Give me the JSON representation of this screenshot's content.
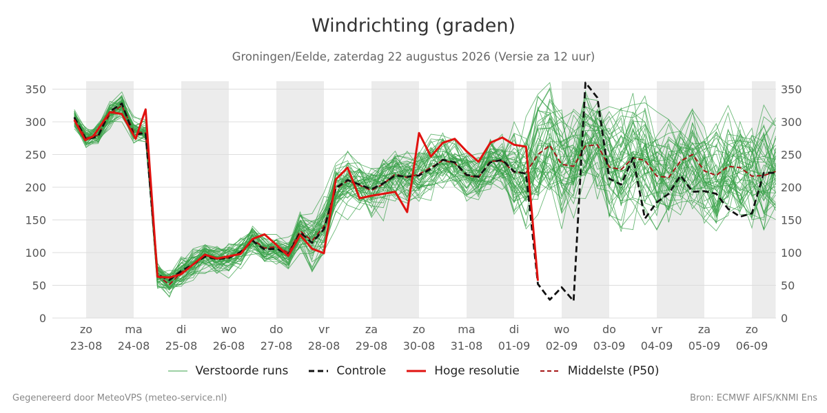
{
  "header": {
    "title": "Windrichting (graden)",
    "subtitle": "Groningen/Eelde, zaterdag 22 augustus 2026 (Versie za 12 uur)"
  },
  "footer": {
    "left": "Gegenereerd door MeteoVPS (meteo-service.nl)",
    "right": "Bron: ECMWF AIFS/KNMI Ens"
  },
  "colors": {
    "members": "#3aa14a",
    "control": "#111111",
    "hires": "#e0120f",
    "median": "#a51515",
    "night_band": "#ececec",
    "grid": "#dddddd"
  },
  "chart_data": {
    "type": "line",
    "title": "Windrichting (graden)",
    "ylim": [
      0,
      370
    ],
    "yticks": [
      0,
      50,
      100,
      150,
      200,
      250,
      300,
      350
    ],
    "xlim": [
      0,
      14.5
    ],
    "x_ticks": [
      {
        "x": 0,
        "day": "zo",
        "date": "23-08"
      },
      {
        "x": 1,
        "day": "ma",
        "date": "24-08"
      },
      {
        "x": 2,
        "day": "di",
        "date": "25-08"
      },
      {
        "x": 3,
        "day": "wo",
        "date": "26-08"
      },
      {
        "x": 4,
        "day": "do",
        "date": "27-08"
      },
      {
        "x": 5,
        "day": "vr",
        "date": "28-08"
      },
      {
        "x": 6,
        "day": "za",
        "date": "29-08"
      },
      {
        "x": 7,
        "day": "zo",
        "date": "30-08"
      },
      {
        "x": 8,
        "day": "ma",
        "date": "31-08"
      },
      {
        "x": 9,
        "day": "di",
        "date": "01-09"
      },
      {
        "x": 10,
        "day": "wo",
        "date": "02-09"
      },
      {
        "x": 11,
        "day": "do",
        "date": "03-09"
      },
      {
        "x": 12,
        "day": "vr",
        "date": "04-09"
      },
      {
        "x": 13,
        "day": "za",
        "date": "05-09"
      },
      {
        "x": 14,
        "day": "zo",
        "date": "06-09"
      }
    ],
    "night_bands": [
      [
        0,
        1
      ],
      [
        2,
        3
      ],
      [
        4,
        5
      ],
      [
        6,
        7
      ],
      [
        8,
        9
      ],
      [
        10,
        11
      ],
      [
        12,
        13
      ],
      [
        14,
        14.5
      ]
    ],
    "grid": true,
    "legend_position": "bottom",
    "legend": {
      "members": "Verstoorde runs",
      "control": "Controle",
      "hires": "Hoge resolutie",
      "median": "Middelste (P50)"
    },
    "series": [
      {
        "name": "Hoge resolutie",
        "role": "hires",
        "points": [
          [
            -0.25,
            303
          ],
          [
            -0.02,
            272
          ],
          [
            0.15,
            278
          ],
          [
            0.5,
            315
          ],
          [
            0.75,
            312
          ],
          [
            1.04,
            274
          ],
          [
            1.25,
            319
          ],
          [
            1.5,
            63
          ],
          [
            1.75,
            62
          ],
          [
            2.0,
            67
          ],
          [
            2.5,
            97
          ],
          [
            2.75,
            91
          ],
          [
            3.25,
            98
          ],
          [
            3.5,
            121
          ],
          [
            3.75,
            128
          ],
          [
            4.0,
            112
          ],
          [
            4.25,
            95
          ],
          [
            4.5,
            127
          ],
          [
            4.75,
            106
          ],
          [
            5.0,
            99
          ],
          [
            5.25,
            212
          ],
          [
            5.5,
            230
          ],
          [
            5.75,
            183
          ],
          [
            6.0,
            187
          ],
          [
            6.25,
            190
          ],
          [
            6.5,
            193
          ],
          [
            6.75,
            162
          ],
          [
            7.0,
            283
          ],
          [
            7.25,
            247
          ],
          [
            7.5,
            268
          ],
          [
            7.75,
            274
          ],
          [
            8.0,
            255
          ],
          [
            8.25,
            239
          ],
          [
            8.5,
            268
          ],
          [
            8.75,
            276
          ],
          [
            9.0,
            265
          ],
          [
            9.25,
            262
          ],
          [
            9.5,
            57
          ]
        ]
      },
      {
        "name": "Middelste (P50)",
        "role": "median",
        "points": [
          [
            -0.25,
            305
          ],
          [
            0,
            275
          ],
          [
            0.25,
            280
          ],
          [
            0.5,
            312
          ],
          [
            0.75,
            325
          ],
          [
            1.0,
            285
          ],
          [
            1.25,
            283
          ],
          [
            1.5,
            65
          ],
          [
            1.75,
            51
          ],
          [
            2.0,
            70
          ],
          [
            2.25,
            82
          ],
          [
            2.5,
            96
          ],
          [
            2.75,
            91
          ],
          [
            3.0,
            92
          ],
          [
            3.25,
            100
          ],
          [
            3.5,
            120
          ],
          [
            3.75,
            107
          ],
          [
            4.0,
            109
          ],
          [
            4.25,
            100
          ],
          [
            4.5,
            133
          ],
          [
            4.75,
            118
          ],
          [
            5.0,
            140
          ],
          [
            5.25,
            197
          ],
          [
            5.5,
            210
          ],
          [
            5.75,
            203
          ],
          [
            6.0,
            195
          ],
          [
            6.25,
            205
          ],
          [
            6.5,
            220
          ],
          [
            6.75,
            215
          ],
          [
            7.0,
            220
          ],
          [
            7.25,
            230
          ],
          [
            7.5,
            241
          ],
          [
            7.75,
            237
          ],
          [
            8.0,
            218
          ],
          [
            8.25,
            215
          ],
          [
            8.5,
            240
          ],
          [
            8.75,
            240
          ],
          [
            9.0,
            223
          ],
          [
            9.25,
            222
          ],
          [
            9.5,
            250
          ],
          [
            9.75,
            264
          ],
          [
            10.0,
            235
          ],
          [
            10.25,
            232
          ],
          [
            10.5,
            263
          ],
          [
            10.75,
            265
          ],
          [
            11.0,
            231
          ],
          [
            11.25,
            227
          ],
          [
            11.5,
            245
          ],
          [
            11.75,
            241
          ],
          [
            12.0,
            217
          ],
          [
            12.25,
            215
          ],
          [
            12.5,
            240
          ],
          [
            12.75,
            250
          ],
          [
            13.0,
            225
          ],
          [
            13.25,
            218
          ],
          [
            13.5,
            232
          ],
          [
            13.75,
            230
          ],
          [
            14.0,
            217
          ],
          [
            14.25,
            218
          ],
          [
            14.5,
            224
          ]
        ]
      },
      {
        "name": "Controle",
        "role": "control",
        "points": [
          [
            -0.25,
            307
          ],
          [
            0,
            273
          ],
          [
            0.25,
            278
          ],
          [
            0.5,
            316
          ],
          [
            0.75,
            328
          ],
          [
            1.0,
            280
          ],
          [
            1.25,
            283
          ],
          [
            1.5,
            66
          ],
          [
            1.75,
            58
          ],
          [
            2.0,
            72
          ],
          [
            2.25,
            82
          ],
          [
            2.5,
            94
          ],
          [
            2.75,
            90
          ],
          [
            3.0,
            92
          ],
          [
            3.25,
            101
          ],
          [
            3.5,
            118
          ],
          [
            3.75,
            105
          ],
          [
            4.0,
            106
          ],
          [
            4.25,
            97
          ],
          [
            4.5,
            131
          ],
          [
            4.75,
            115
          ],
          [
            5.0,
            136
          ],
          [
            5.25,
            199
          ],
          [
            5.5,
            211
          ],
          [
            5.75,
            204
          ],
          [
            6.0,
            197
          ],
          [
            6.25,
            206
          ],
          [
            6.5,
            218
          ],
          [
            6.75,
            216
          ],
          [
            7.0,
            218
          ],
          [
            7.25,
            228
          ],
          [
            7.5,
            242
          ],
          [
            7.75,
            238
          ],
          [
            8.0,
            219
          ],
          [
            8.25,
            216
          ],
          [
            8.5,
            238
          ],
          [
            8.75,
            242
          ],
          [
            9.0,
            224
          ],
          [
            9.25,
            221
          ],
          [
            9.5,
            52
          ],
          [
            9.75,
            28
          ],
          [
            10.0,
            47
          ],
          [
            10.25,
            26
          ],
          [
            10.5,
            360
          ],
          [
            10.75,
            337
          ],
          [
            11.0,
            213
          ],
          [
            11.25,
            204
          ],
          [
            11.5,
            245
          ],
          [
            11.75,
            152
          ],
          [
            12.0,
            177
          ],
          [
            12.25,
            190
          ],
          [
            12.5,
            218
          ],
          [
            12.75,
            193
          ],
          [
            13.0,
            194
          ],
          [
            13.25,
            190
          ],
          [
            13.5,
            167
          ],
          [
            13.75,
            155
          ],
          [
            14.0,
            160
          ],
          [
            14.25,
            222
          ],
          [
            14.5,
            222
          ]
        ]
      }
    ]
  }
}
